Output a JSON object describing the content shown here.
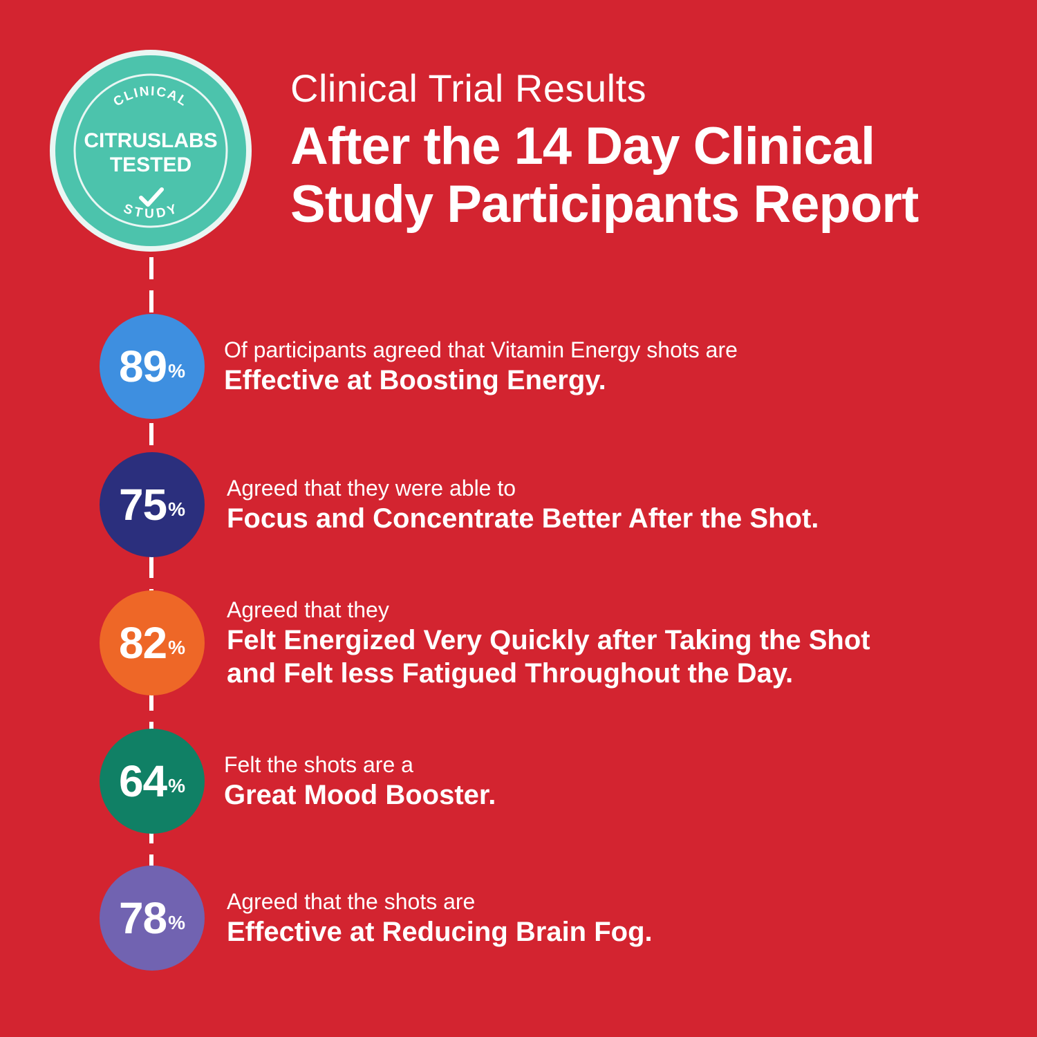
{
  "badge": {
    "top_text": "CLINICAL",
    "line1": "CITRUSLABS",
    "line2": "TESTED",
    "bottom_text": "STUDY",
    "check_icon": "check-icon",
    "color": "#4cc3ac"
  },
  "header": {
    "kicker": "Clinical Trial Results",
    "headline_line1": "After the 14 Day Clinical",
    "headline_line2": "Study Participants Report"
  },
  "stats": [
    {
      "value": "89",
      "unit": "%",
      "color": "#3e8fe0",
      "lead": "Of participants agreed that Vitamin Energy shots are",
      "emphasis": [
        "Effective at Boosting Energy."
      ]
    },
    {
      "value": "75",
      "unit": "%",
      "color": "#2b2f7d",
      "lead": "Agreed that they were able to",
      "emphasis": [
        "Focus and Concentrate Better After the Shot."
      ]
    },
    {
      "value": "82",
      "unit": "%",
      "color": "#ee6727",
      "lead": "Agreed that they",
      "emphasis": [
        "Felt Energized Very Quickly after Taking the Shot",
        "and Felt less Fatigued Throughout the Day."
      ]
    },
    {
      "value": "64",
      "unit": "%",
      "color": "#108065",
      "lead": "Felt the shots are a",
      "emphasis": [
        "Great Mood Booster."
      ]
    },
    {
      "value": "78",
      "unit": "%",
      "color": "#7163b1",
      "lead": "Agreed that the shots are",
      "emphasis": [
        "Effective at Reducing Brain Fog."
      ]
    }
  ],
  "colors": {
    "background": "#d32430",
    "text": "#ffffff"
  }
}
